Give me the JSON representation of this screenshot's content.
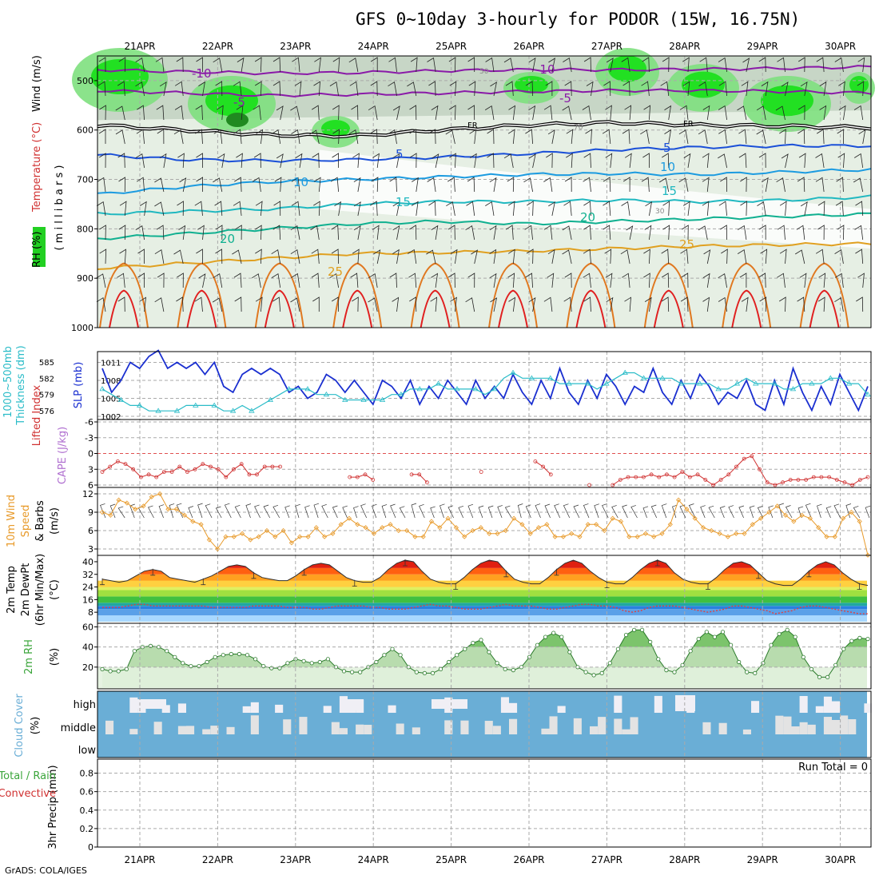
{
  "title": "GFS 0~10day 3-hourly for PODOR (15W, 16.75N)",
  "credit": "GrADS: COLA/IGES",
  "colors": {
    "frame": "#000000",
    "grid": "#aaaaaa",
    "temp_line": "#3030ff",
    "rh_green": "#00e000",
    "slp": "#1a2fd0",
    "thickness": "#2abcc8",
    "cape_lifted": "#d03030",
    "wind_speed": "#e89a2a",
    "rh2m": "#3aa53a",
    "cloud": "#6aaed6",
    "cloud_clear": "#f0eff5"
  },
  "dates": [
    "21APR",
    "22APR",
    "23APR",
    "24APR",
    "25APR",
    "26APR",
    "27APR",
    "28APR",
    "29APR",
    "30APR"
  ],
  "chart_data": [
    {
      "type": "heatmap",
      "name": "upper-air",
      "ylabel_parts": [
        "RH (%)",
        "Temperature (°C)",
        "Wind (m/s)"
      ],
      "yaxis_title": "( m i l l i b a r s )",
      "yticks": [
        500,
        600,
        700,
        800,
        900,
        1000
      ],
      "ylim": [
        1000,
        450
      ],
      "freezing_label": "FR",
      "isotherm_labels": [
        "-10",
        "-5",
        "5",
        "10",
        "15",
        "20",
        "25"
      ],
      "rh_labels": [
        "50",
        "70",
        "30"
      ],
      "isotherms": [
        {
          "label": "-10",
          "color": "#8a1aa8",
          "p": [
            478,
            482,
            485,
            484,
            480,
            478,
            478,
            477,
            475,
            472
          ]
        },
        {
          "label": "-5",
          "color": "#8a1aa8",
          "p": [
            520,
            525,
            530,
            528,
            525,
            522,
            520,
            520,
            522,
            525
          ]
        },
        {
          "label": "FR",
          "color": "#000000",
          "p": [
            590,
            600,
            610,
            612,
            600,
            590,
            585,
            590,
            592,
            595
          ]
        },
        {
          "label": "5",
          "color": "#1a4fd8",
          "p": [
            650,
            660,
            662,
            660,
            655,
            648,
            640,
            635,
            632,
            632
          ]
        },
        {
          "label": "10",
          "color": "#1c9be0",
          "p": [
            730,
            715,
            705,
            700,
            695,
            690,
            688,
            690,
            685,
            680
          ]
        },
        {
          "label": "15",
          "color": "#20b8c0",
          "p": [
            770,
            765,
            760,
            750,
            745,
            745,
            742,
            745,
            742,
            735
          ]
        },
        {
          "label": "20",
          "color": "#10b090",
          "p": [
            820,
            810,
            800,
            790,
            785,
            790,
            785,
            780,
            775,
            770
          ]
        },
        {
          "label": "25",
          "color": "#e0a020",
          "p": [
            880,
            870,
            860,
            850,
            848,
            845,
            840,
            835,
            832,
            830
          ]
        }
      ]
    },
    {
      "type": "line",
      "name": "slp-thickness",
      "ylabel_left": [
        "1000~500mb",
        "Thickness (dm)"
      ],
      "ylabel_right": "SLP (mb)",
      "yticks_left": [
        576,
        579,
        582,
        585
      ],
      "yticks_right": [
        1002,
        1005,
        1008,
        1011
      ],
      "series": [
        {
          "name": "SLP (mb)",
          "axis": "right",
          "values": [
            1010,
            1006,
            1008,
            1011,
            1010,
            1012,
            1013,
            1010,
            1011,
            1010,
            1011,
            1009,
            1011,
            1007,
            1006,
            1009,
            1010,
            1009,
            1010,
            1009,
            1006,
            1007,
            1005,
            1006,
            1009,
            1008,
            1006,
            1008,
            1006,
            1004,
            1008,
            1007,
            1005,
            1008,
            1004,
            1007,
            1005,
            1008,
            1006,
            1004,
            1008,
            1005,
            1007,
            1005,
            1009,
            1006,
            1004,
            1008,
            1005,
            1010,
            1006,
            1004,
            1008,
            1005,
            1009,
            1007,
            1004,
            1007,
            1006,
            1010,
            1006,
            1004,
            1008,
            1005,
            1009,
            1007,
            1004,
            1006,
            1005,
            1008,
            1004,
            1003,
            1008,
            1004,
            1010,
            1006,
            1003,
            1007,
            1004,
            1009,
            1006,
            1003,
            1007
          ]
        },
        {
          "name": "1000~500mb Thickness (dm)",
          "axis": "left",
          "values": [
            580,
            579,
            578,
            577,
            577,
            576,
            576,
            576,
            576,
            577,
            577,
            577,
            577,
            576,
            576,
            577,
            576,
            577,
            578,
            579,
            580,
            580,
            580,
            579,
            579,
            579,
            578,
            578,
            578,
            578,
            578,
            579,
            579,
            580,
            580,
            580,
            581,
            580,
            580,
            580,
            580,
            579,
            580,
            582,
            583,
            582,
            582,
            582,
            582,
            581,
            581,
            581,
            581,
            580,
            581,
            582,
            583,
            583,
            582,
            582,
            582,
            582,
            581,
            581,
            581,
            581,
            580,
            580,
            581,
            582,
            581,
            581,
            581,
            580,
            580,
            581,
            581,
            581,
            582,
            582,
            581,
            581,
            579
          ]
        }
      ]
    },
    {
      "type": "line",
      "name": "cape-lifted-index",
      "ylabel": [
        "CAPE (J/kg)",
        "Lifted Index"
      ],
      "yticks": [
        -6,
        -3,
        0,
        3,
        6
      ],
      "series": [
        {
          "name": "Lifted Index",
          "values": [
            3.5,
            2.5,
            1.5,
            2,
            3,
            4.5,
            4,
            4.5,
            3.5,
            3.5,
            2.5,
            3.5,
            3,
            2,
            2.5,
            3,
            4.5,
            3,
            2,
            4,
            4,
            2.5,
            2.5,
            2.5,
            null,
            null,
            null,
            null,
            null,
            null,
            null,
            null,
            4.5,
            4.5,
            4,
            5,
            null,
            null,
            null,
            null,
            4,
            4,
            5.5,
            null,
            null,
            null,
            null,
            null,
            null,
            3.5,
            null,
            null,
            null,
            null,
            null,
            null,
            1.5,
            2.5,
            4,
            null,
            null,
            null,
            null,
            6,
            null,
            null,
            6,
            5,
            4.5,
            4.5,
            4.5,
            4,
            4.5,
            4,
            4.5,
            3.5,
            4.5,
            4,
            5,
            6,
            5,
            4,
            2.5,
            1,
            0.5,
            3,
            5.5,
            6,
            5.5,
            5,
            5,
            5,
            4.5,
            4.5,
            4.5,
            5,
            5.5,
            6,
            5,
            4.5
          ]
        }
      ]
    },
    {
      "type": "line",
      "name": "wind10m",
      "ylabel": [
        "10m Wind",
        "Speed",
        "& Barbs",
        "(m/s)"
      ],
      "yticks": [
        3,
        6,
        9,
        12
      ],
      "series": [
        {
          "name": "10m Wind Speed",
          "values": [
            9,
            8.5,
            11,
            10.5,
            9.5,
            10,
            11.5,
            12,
            9.5,
            9.5,
            8.5,
            7.5,
            7,
            4.5,
            3,
            5,
            5,
            5.5,
            4.5,
            5,
            6,
            5,
            6,
            4,
            5,
            5,
            6.5,
            5,
            5.5,
            7,
            8,
            7,
            6.5,
            5.5,
            6.5,
            7,
            6,
            6,
            5,
            5,
            7.5,
            6.5,
            8,
            6.5,
            5,
            6,
            6.5,
            5.5,
            5.5,
            6,
            8,
            7,
            5.5,
            6.5,
            7,
            5,
            5,
            5.5,
            5,
            7,
            7,
            6,
            8,
            7.5,
            5,
            5,
            5.5,
            5,
            5.5,
            7,
            11,
            9.5,
            8,
            6.5,
            6,
            5.5,
            5,
            5.5,
            5.5,
            7,
            8,
            9,
            10,
            8.5,
            7.5,
            8.5,
            8,
            6.5,
            5,
            5,
            8,
            9,
            7.5,
            2
          ]
        }
      ]
    },
    {
      "type": "area",
      "name": "t2m",
      "ylabel": [
        "2m Temp",
        "2m DewPt",
        "(6hr Min/Max)",
        "(°C)"
      ],
      "yticks": [
        8,
        16,
        24,
        32,
        40
      ],
      "series": [
        {
          "name": "2m Temp",
          "values": [
            29,
            28,
            27,
            28,
            31,
            34,
            35,
            34,
            30,
            29,
            28,
            27,
            29,
            31,
            34,
            37,
            38,
            37,
            33,
            30,
            29,
            28,
            28,
            31,
            35,
            38,
            39,
            38,
            34,
            30,
            28,
            27,
            27,
            30,
            35,
            39,
            41,
            40,
            34,
            29,
            27,
            26,
            26,
            30,
            35,
            39,
            41,
            40,
            34,
            29,
            27,
            26,
            26,
            30,
            35,
            39,
            41,
            39,
            34,
            30,
            27,
            26,
            26,
            30,
            35,
            39,
            41,
            39,
            33,
            29,
            27,
            26,
            26,
            30,
            35,
            39,
            40,
            38,
            33,
            28,
            26,
            25,
            25,
            29,
            34,
            38,
            40,
            38,
            33,
            29,
            26,
            25
          ]
        },
        {
          "name": "2m DewPt",
          "values": [
            11,
            11,
            11,
            12,
            13,
            13,
            12,
            12,
            12,
            12,
            12,
            12,
            12,
            11,
            11,
            11,
            11,
            11,
            12,
            12,
            12,
            12,
            11,
            11,
            11,
            10,
            10,
            11,
            12,
            12,
            12,
            12,
            11,
            11,
            10,
            10,
            10,
            11,
            12,
            13,
            12,
            12,
            11,
            10,
            10,
            10,
            11,
            12,
            13,
            12,
            12,
            12,
            11,
            10,
            10,
            11,
            12,
            13,
            13,
            12,
            12,
            11,
            9,
            8,
            9,
            11,
            12,
            12,
            12,
            11,
            10,
            9,
            8,
            9,
            10,
            12,
            12,
            11,
            10,
            9,
            7,
            8,
            9,
            11,
            12,
            12,
            11,
            10,
            9,
            8,
            7,
            7
          ]
        }
      ]
    },
    {
      "type": "area",
      "name": "rh2m",
      "ylabel": [
        "2m RH",
        "(%)"
      ],
      "yticks": [
        20,
        40,
        60
      ],
      "series": [
        {
          "name": "2m RH",
          "values": [
            18,
            16,
            16,
            18,
            36,
            40,
            41,
            40,
            36,
            30,
            24,
            21,
            21,
            25,
            30,
            32,
            33,
            33,
            32,
            28,
            21,
            19,
            19,
            24,
            28,
            26,
            24,
            25,
            28,
            20,
            16,
            15,
            15,
            20,
            25,
            32,
            38,
            32,
            20,
            15,
            14,
            14,
            18,
            25,
            32,
            38,
            44,
            47,
            35,
            24,
            18,
            17,
            20,
            30,
            42,
            50,
            54,
            50,
            35,
            20,
            15,
            12,
            14,
            24,
            38,
            52,
            57,
            57,
            45,
            28,
            17,
            15,
            22,
            36,
            48,
            55,
            50,
            55,
            42,
            25,
            15,
            14,
            24,
            42,
            53,
            57,
            50,
            30,
            18,
            10,
            10,
            22,
            38,
            46,
            49,
            48
          ]
        }
      ]
    },
    {
      "type": "heatmap",
      "name": "cloud-cover",
      "ylabel": [
        "Cloud Cover",
        "(%)"
      ],
      "levels": [
        "high",
        "middle",
        "low"
      ]
    },
    {
      "type": "line",
      "name": "precip",
      "ylabel": [
        "3hr Precip (mm)",
        "Total / Rain",
        "Convective"
      ],
      "yticks": [
        0,
        0.2,
        0.4,
        0.6,
        0.8
      ],
      "run_total": "Run Total = 0",
      "series": []
    }
  ]
}
